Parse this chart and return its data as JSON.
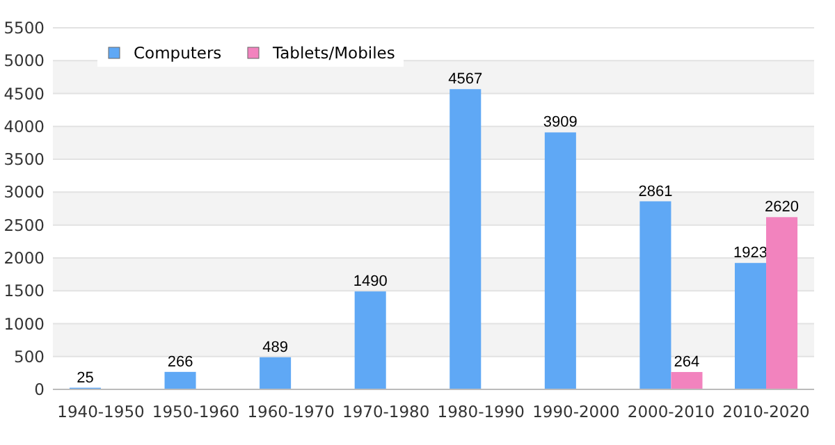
{
  "chart_data": {
    "type": "bar",
    "categories": [
      "1940-1950",
      "1950-1960",
      "1960-1970",
      "1970-1980",
      "1980-1990",
      "1990-2000",
      "2000-2010",
      "2010-2020"
    ],
    "series": [
      {
        "name": "Computers",
        "color": "#5fa8f5",
        "values": [
          25,
          266,
          489,
          1490,
          4567,
          3909,
          2861,
          1923
        ]
      },
      {
        "name": "Tablets/Mobiles",
        "color": "#f283be",
        "values": [
          null,
          null,
          null,
          null,
          null,
          null,
          264,
          2620
        ]
      }
    ],
    "ylim": [
      0,
      5500
    ],
    "yticks": [
      0,
      500,
      1000,
      1500,
      2000,
      2500,
      3000,
      3500,
      4000,
      4500,
      5000,
      5500
    ],
    "grid": "y",
    "legend": "top left",
    "data_labels": true
  }
}
